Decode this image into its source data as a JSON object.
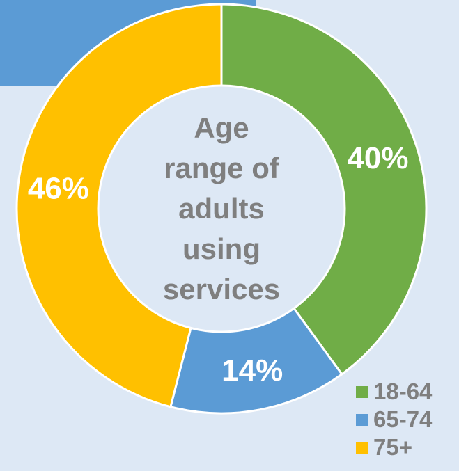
{
  "colors": {
    "background": "#dde8f5",
    "corner_block": "#5b9bd5",
    "ring_border": "#ffffff",
    "center_fill": "#dde8f5",
    "center_text": "#7f7f7f",
    "label_text": "#ffffff"
  },
  "chart_data": {
    "type": "pie",
    "variant": "donut",
    "center_text_lines": [
      "Age",
      "range of",
      "adults",
      "using",
      "services"
    ],
    "slices": [
      {
        "name": "18-64",
        "value": 40,
        "label": "40%",
        "color": "#70ad47"
      },
      {
        "name": "65-74",
        "value": 14,
        "label": "14%",
        "color": "#5b9bd5"
      },
      {
        "name": "75+",
        "value": 46,
        "label": "46%",
        "color": "#ffc000"
      }
    ],
    "legend": {
      "position": "bottom-right",
      "entries": [
        "18-64",
        "65-74",
        "75+"
      ]
    }
  }
}
